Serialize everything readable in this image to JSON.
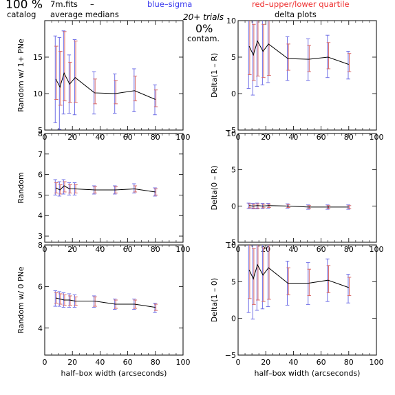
{
  "header": {
    "percent": "100 %",
    "catalog": "catalog",
    "file": "7m.fits",
    "dash": "–",
    "averages": "average medians",
    "blue_note": "blue–sigma",
    "red_note": "red–upper/lower quartile",
    "trials": "20+ trials",
    "contam_pct": "0%",
    "contam": "contam.",
    "delta_title": "delta plots"
  },
  "colors": {
    "sigma": "#6f6fe6",
    "quartile": "#d86868",
    "line": "#000000"
  },
  "chart_data": [
    {
      "id": "random-1plus",
      "type": "line",
      "ylabel": "Random w/ 1+ PNe",
      "xlabel": "",
      "xlim": [
        0,
        100
      ],
      "ylim": [
        5,
        20
      ],
      "xticks": [
        0,
        20,
        40,
        60,
        80,
        100
      ],
      "yticks": [
        5,
        10,
        15
      ],
      "x": [
        8,
        11,
        14,
        18,
        22,
        36,
        51,
        65,
        80
      ],
      "y": [
        12.0,
        10.9,
        12.8,
        11.3,
        12.2,
        10.1,
        10.0,
        10.4,
        9.2
      ],
      "sigma_lo": [
        6.0,
        5.1,
        7.2,
        7.3,
        7.1,
        7.2,
        7.3,
        7.5,
        7.1
      ],
      "sigma_hi": [
        17.9,
        17.7,
        18.6,
        15.3,
        17.4,
        13.0,
        12.7,
        13.4,
        11.2
      ],
      "q_lo": [
        9.2,
        8.4,
        9.0,
        8.8,
        8.8,
        8.6,
        8.6,
        9.0,
        8.2
      ],
      "q_hi": [
        16.5,
        15.8,
        18.5,
        14.3,
        17.2,
        12.0,
        11.8,
        12.4,
        10.5
      ]
    },
    {
      "id": "random",
      "type": "line",
      "ylabel": "Random",
      "xlabel": "",
      "xlim": [
        0,
        100
      ],
      "ylim": [
        2.7,
        8
      ],
      "xticks": [
        0,
        20,
        40,
        60,
        80,
        100
      ],
      "yticks": [
        3,
        4,
        5,
        6,
        7,
        8
      ],
      "x": [
        8,
        11,
        14,
        18,
        22,
        36,
        51,
        65,
        80
      ],
      "y": [
        5.35,
        5.25,
        5.45,
        5.3,
        5.3,
        5.25,
        5.25,
        5.3,
        5.15
      ],
      "sigma_lo": [
        5.0,
        4.95,
        5.05,
        5.0,
        5.0,
        5.05,
        5.05,
        5.1,
        4.95
      ],
      "sigma_hi": [
        5.75,
        5.65,
        5.75,
        5.6,
        5.6,
        5.45,
        5.45,
        5.55,
        5.35
      ],
      "q_lo": [
        5.1,
        5.05,
        5.15,
        5.1,
        5.1,
        5.1,
        5.1,
        5.15,
        5.0
      ],
      "q_hi": [
        5.6,
        5.5,
        5.65,
        5.5,
        5.5,
        5.4,
        5.4,
        5.45,
        5.3
      ]
    },
    {
      "id": "random-0",
      "type": "line",
      "ylabel": "Random w/ 0 PNe",
      "xlabel": "half–box width (arcseconds)",
      "xlim": [
        0,
        100
      ],
      "ylim": [
        2.7,
        8
      ],
      "xticks": [
        0,
        20,
        40,
        60,
        80,
        100
      ],
      "yticks": [
        4,
        6,
        8
      ],
      "x": [
        8,
        11,
        14,
        18,
        22,
        36,
        51,
        65,
        80
      ],
      "y": [
        5.45,
        5.4,
        5.35,
        5.35,
        5.3,
        5.3,
        5.15,
        5.15,
        5.0
      ],
      "sigma_lo": [
        5.05,
        5.05,
        5.0,
        5.0,
        5.0,
        5.0,
        4.9,
        4.9,
        4.75
      ],
      "sigma_hi": [
        5.8,
        5.75,
        5.7,
        5.65,
        5.6,
        5.55,
        5.4,
        5.4,
        5.2
      ],
      "q_lo": [
        5.2,
        5.15,
        5.1,
        5.1,
        5.1,
        5.05,
        4.95,
        4.95,
        4.85
      ],
      "q_hi": [
        5.7,
        5.65,
        5.6,
        5.55,
        5.5,
        5.5,
        5.35,
        5.35,
        5.15
      ]
    },
    {
      "id": "delta-1-r",
      "type": "line",
      "ylabel": "Delta(1 – R)",
      "xlabel": "",
      "xlim": [
        0,
        100
      ],
      "ylim": [
        -5,
        10
      ],
      "xticks": [
        0,
        20,
        40,
        60,
        80,
        100
      ],
      "yticks": [
        -5,
        0,
        5,
        10
      ],
      "x": [
        8,
        11,
        14,
        18,
        22,
        36,
        51,
        65,
        80
      ],
      "y": [
        6.5,
        5.3,
        7.2,
        5.8,
        6.8,
        4.8,
        4.7,
        5.0,
        4.0
      ],
      "sigma_lo": [
        0.7,
        -0.2,
        1.0,
        1.2,
        1.5,
        1.8,
        1.8,
        2.2,
        2.0
      ],
      "sigma_hi": [
        12.5,
        11.0,
        13.2,
        11.0,
        12.5,
        7.8,
        7.5,
        8.0,
        5.8
      ],
      "q_lo": [
        2.6,
        1.8,
        2.4,
        2.2,
        2.5,
        3.2,
        3.0,
        3.4,
        3.0
      ],
      "q_hi": [
        10.5,
        9.5,
        13.0,
        9.5,
        12.0,
        6.8,
        6.6,
        7.0,
        5.5
      ]
    },
    {
      "id": "delta-0-r",
      "type": "line",
      "ylabel": "Delta(0 – R)",
      "xlabel": "",
      "xlim": [
        0,
        100
      ],
      "ylim": [
        -5,
        10
      ],
      "xticks": [
        0,
        20,
        40,
        60,
        80,
        100
      ],
      "yticks": [
        -5,
        0,
        5,
        10
      ],
      "x": [
        8,
        11,
        14,
        18,
        22,
        36,
        51,
        65,
        80
      ],
      "y": [
        0.05,
        0.0,
        0.05,
        0.0,
        0.05,
        0.0,
        -0.15,
        -0.15,
        -0.15
      ],
      "sigma_lo": [
        -0.35,
        -0.4,
        -0.4,
        -0.35,
        -0.3,
        -0.3,
        -0.45,
        -0.45,
        -0.45
      ],
      "sigma_hi": [
        0.4,
        0.35,
        0.4,
        0.35,
        0.35,
        0.3,
        0.15,
        0.15,
        0.15
      ],
      "q_lo": [
        -0.25,
        -0.3,
        -0.3,
        -0.25,
        -0.2,
        -0.2,
        -0.35,
        -0.35,
        -0.35
      ],
      "q_hi": [
        0.3,
        0.25,
        0.3,
        0.25,
        0.25,
        0.2,
        0.05,
        0.05,
        0.05
      ]
    },
    {
      "id": "delta-1-0",
      "type": "line",
      "ylabel": "Delta(1 – 0)",
      "xlabel": "half–box width (arcseconds)",
      "xlim": [
        0,
        100
      ],
      "ylim": [
        -5,
        10
      ],
      "xticks": [
        0,
        20,
        40,
        60,
        80,
        100
      ],
      "yticks": [
        -5,
        0,
        5,
        10
      ],
      "x": [
        8,
        11,
        14,
        18,
        22,
        36,
        51,
        65,
        80
      ],
      "y": [
        6.6,
        5.4,
        7.3,
        5.9,
        6.9,
        4.8,
        4.8,
        5.2,
        4.2
      ],
      "sigma_lo": [
        0.8,
        -0.1,
        1.1,
        1.3,
        1.6,
        1.8,
        1.9,
        2.3,
        2.1
      ],
      "sigma_hi": [
        12.5,
        11.0,
        13.2,
        11.0,
        12.5,
        7.8,
        7.6,
        8.1,
        6.0
      ],
      "q_lo": [
        2.7,
        1.9,
        2.5,
        2.3,
        2.6,
        3.2,
        3.1,
        3.5,
        3.1
      ],
      "q_hi": [
        10.5,
        9.5,
        13.0,
        9.6,
        12.1,
        6.9,
        6.7,
        7.2,
        5.6
      ]
    }
  ]
}
